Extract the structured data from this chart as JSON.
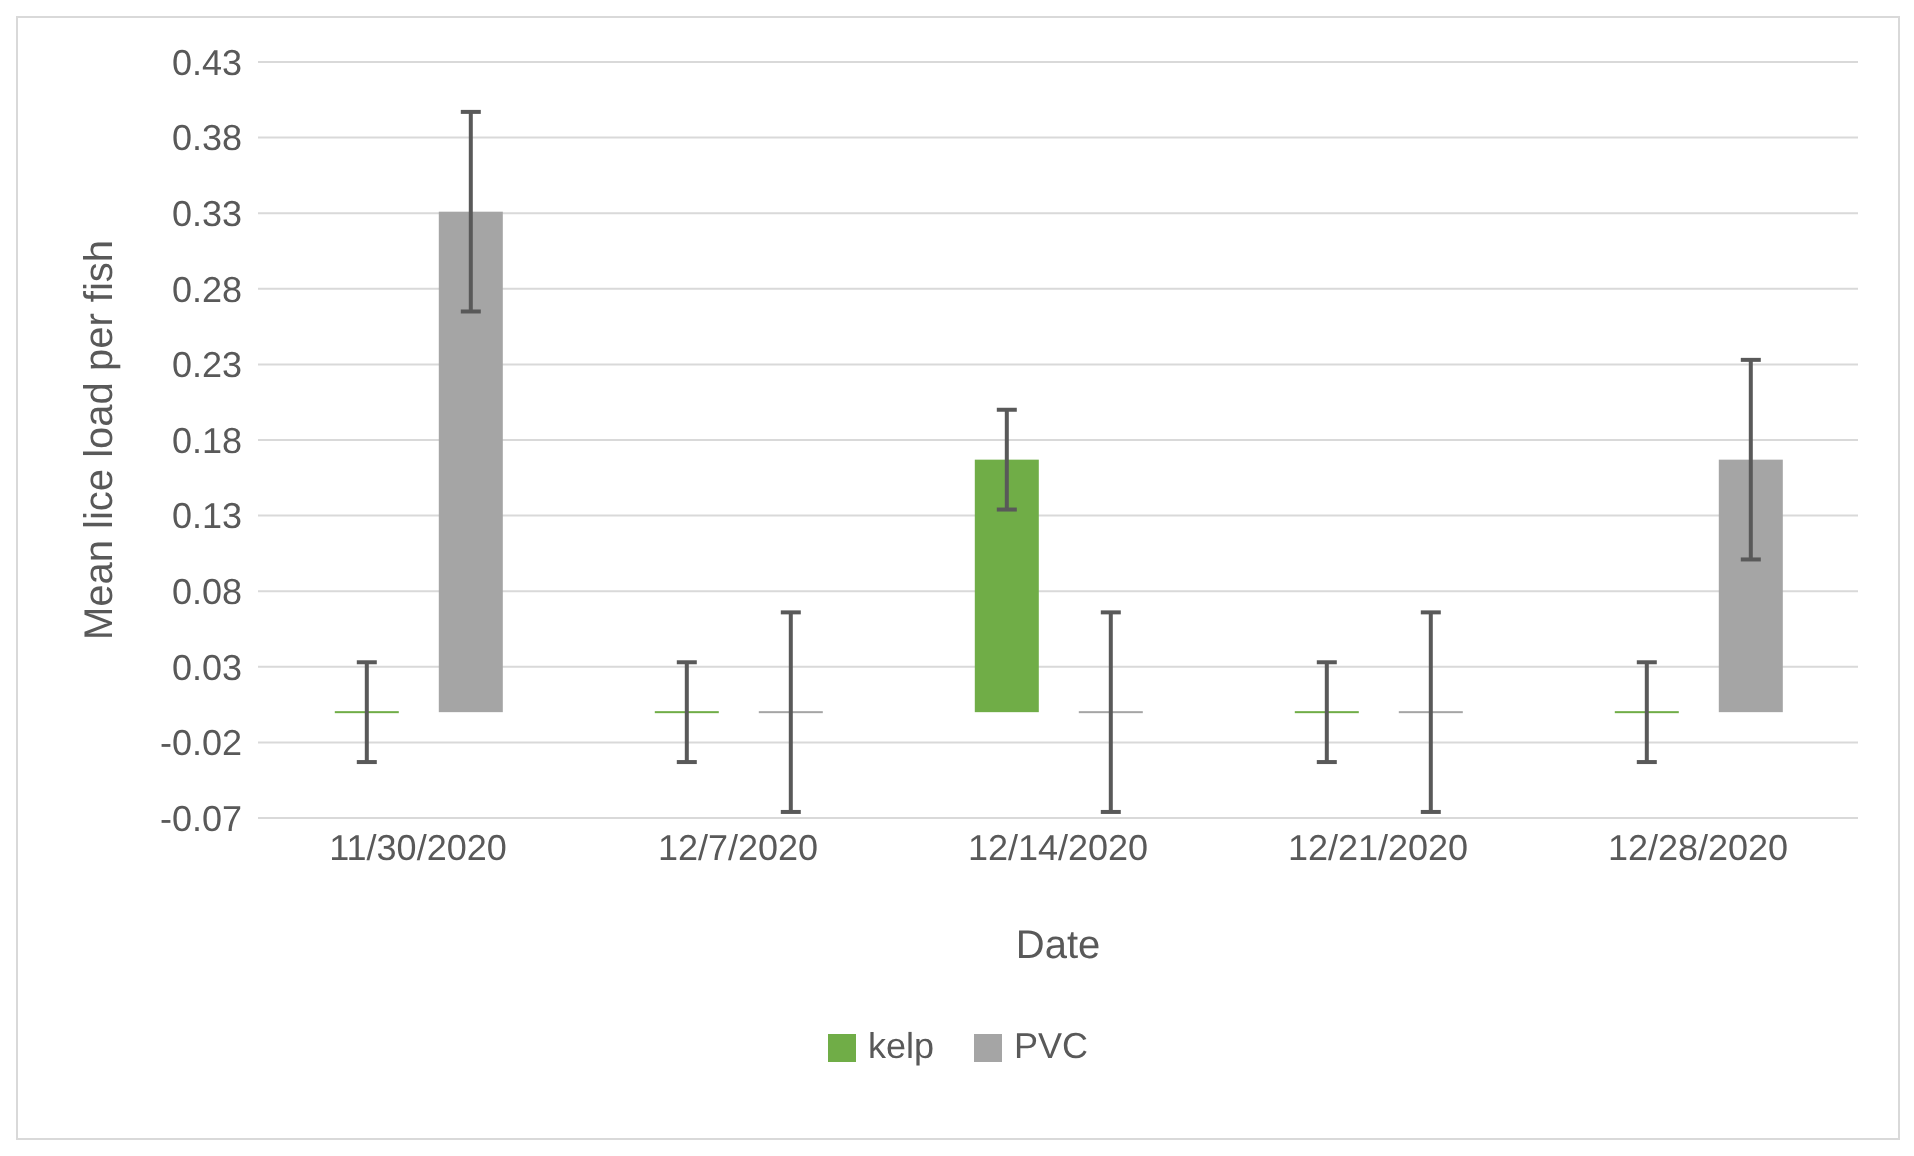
{
  "chart_data": {
    "type": "bar",
    "xlabel": "Date",
    "ylabel": "Mean lice load per fish",
    "categories": [
      "11/30/2020",
      "12/7/2020",
      "12/14/2020",
      "12/21/2020",
      "12/28/2020"
    ],
    "series": [
      {
        "name": "kelp",
        "color": "#70ad47",
        "values": [
          0,
          0,
          0.167,
          0,
          0
        ],
        "errors": [
          0.033,
          0.033,
          0.033,
          0.033,
          0.033
        ]
      },
      {
        "name": "PVC",
        "color": "#a5a5a5",
        "values": [
          0.331,
          0,
          0,
          0,
          0.167
        ],
        "errors": [
          0.066,
          0.066,
          0.066,
          0.066,
          0.066
        ]
      }
    ],
    "ylim": [
      -0.07,
      0.43
    ],
    "yticks": [
      -0.07,
      -0.02,
      0.03,
      0.08,
      0.13,
      0.18,
      0.23,
      0.28,
      0.33,
      0.38,
      0.43
    ],
    "grid": "y",
    "legend": "bottom"
  }
}
